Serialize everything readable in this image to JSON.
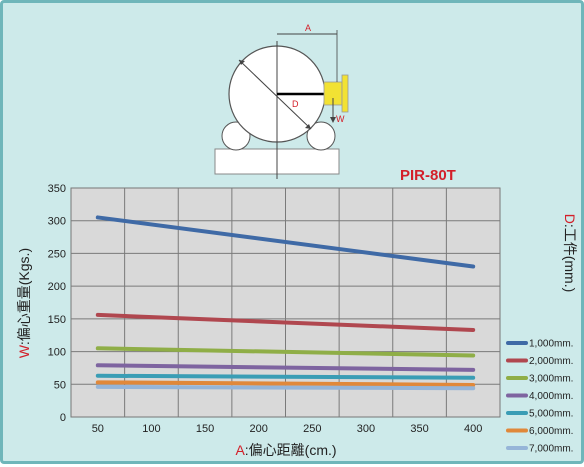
{
  "chart_data": {
    "type": "line",
    "title": "PIR-80T",
    "xlabel_prefix": "A",
    "xlabel_rest": ":偏心距離(cm.)",
    "ylabel_prefix": "W",
    "ylabel_rest": ":偏心重量(Kgs.)",
    "right_label_prefix": "D",
    "right_label_rest": ":工件(mm.)",
    "x": [
      50,
      400
    ],
    "xticks": [
      50,
      100,
      150,
      200,
      250,
      300,
      350,
      400
    ],
    "yticks": [
      0,
      50,
      100,
      150,
      200,
      250,
      300,
      350
    ],
    "xlim": [
      25,
      425
    ],
    "ylim": [
      0,
      350
    ],
    "grid": true,
    "legend_position": "right",
    "series": [
      {
        "name": "1,000mm.",
        "color": "#3f6aa6",
        "values": [
          305,
          230
        ]
      },
      {
        "name": "2,000mm.",
        "color": "#b0474f",
        "values": [
          156,
          133
        ]
      },
      {
        "name": "3,000mm.",
        "color": "#8fae47",
        "values": [
          105,
          94
        ]
      },
      {
        "name": "4,000mm.",
        "color": "#7e64a0",
        "values": [
          79,
          72
        ]
      },
      {
        "name": "5,000mm.",
        "color": "#3a9db5",
        "values": [
          63,
          60
        ]
      },
      {
        "name": "6,000mm.",
        "color": "#e0883a",
        "values": [
          53,
          49
        ]
      },
      {
        "name": "7,000mm.",
        "color": "#96b5d8",
        "values": [
          46,
          44
        ]
      }
    ]
  },
  "diagram": {
    "label_a": "A",
    "label_d": "D",
    "label_w": "W"
  }
}
